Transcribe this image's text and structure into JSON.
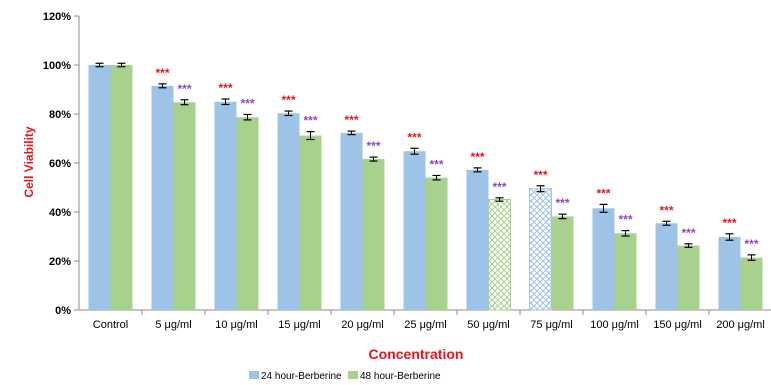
{
  "chart_data": {
    "type": "bar",
    "xlabel": "Concentration",
    "ylabel": "Cell Viability",
    "ylim": [
      0,
      120
    ],
    "yticks": [
      0,
      20,
      40,
      60,
      80,
      100,
      120
    ],
    "ytick_suffix": "%",
    "grid": false,
    "legend_position": "bottom",
    "categories": [
      "Control",
      "5 μg/ml",
      "10 μg/ml",
      "15 μg/ml",
      "20 μg/ml",
      "25 μg/ml",
      "50 μg/ml",
      "75 μg/ml",
      "100 μg/ml",
      "150 μg/ml",
      "200 μg/ml"
    ],
    "series": [
      {
        "name": "24 hour-Berberine",
        "color": "#9dc3e6",
        "values": [
          100,
          91.5,
          85,
          80.3,
          72.3,
          64.8,
          57.2,
          49.5,
          41.5,
          35.4,
          29.8
        ],
        "errors": [
          0.3,
          0.4,
          0.7,
          0.5,
          0.3,
          0.8,
          0.4,
          0.8,
          1.2,
          0.4,
          0.9
        ],
        "significance": [
          "",
          "***",
          "***",
          "***",
          "***",
          "***",
          "***",
          "***",
          "***",
          "***",
          "***"
        ],
        "significance_color": "#e8141c",
        "hatched_categories": [
          "75 μg/ml"
        ]
      },
      {
        "name": "48 hour-Berberine",
        "color": "#a9d18e",
        "values": [
          100,
          84.8,
          78.7,
          71.2,
          61.6,
          54,
          45.1,
          38.2,
          31.3,
          26.3,
          21.4
        ],
        "errors": [
          0.3,
          0.6,
          0.7,
          1.2,
          0.4,
          0.5,
          0.3,
          0.5,
          0.7,
          0.3,
          0.7
        ],
        "significance": [
          "",
          "***",
          "***",
          "***",
          "***",
          "***",
          "***",
          "***",
          "***",
          "***",
          "***"
        ],
        "significance_color": "#8e44c8",
        "hatched_categories": [
          "50 μg/ml"
        ]
      }
    ]
  }
}
